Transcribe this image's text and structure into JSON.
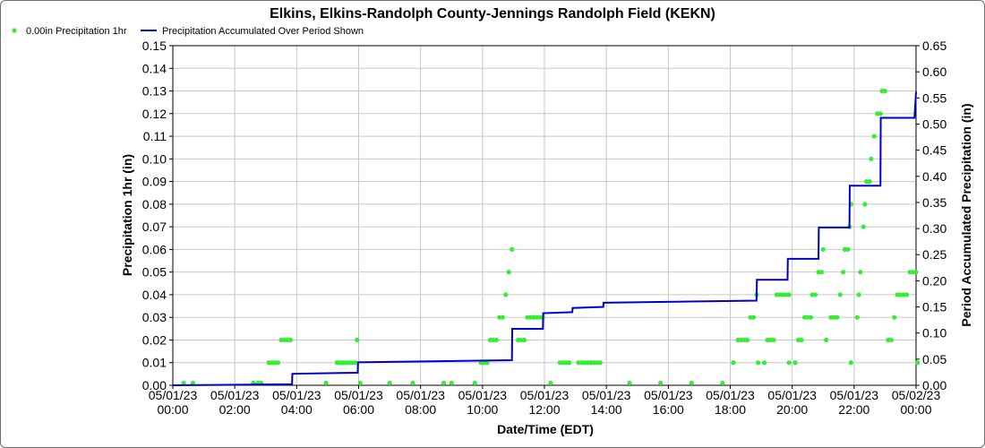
{
  "chart_data": {
    "type": "scatter+line",
    "title": "Elkins, Elkins-Randolph County-Jennings Randolph Field (KEKN)",
    "xlabel": "Date/Time (EDT)",
    "ylabel_left": "Precipitation 1hr (in)",
    "ylabel_right": "Period Accumulated Precipitation (in)",
    "legend_placement": "top-left",
    "grid": true,
    "xlim": [
      0,
      24
    ],
    "ylim_left": [
      0,
      0.15
    ],
    "ylim_right": [
      0,
      0.65
    ],
    "x_ticks": [
      {
        "x": 0,
        "date": "05/01/23",
        "time": "00:00"
      },
      {
        "x": 2,
        "date": "05/01/23",
        "time": "02:00"
      },
      {
        "x": 4,
        "date": "05/01/23",
        "time": "04:00"
      },
      {
        "x": 6,
        "date": "05/01/23",
        "time": "06:00"
      },
      {
        "x": 8,
        "date": "05/01/23",
        "time": "08:00"
      },
      {
        "x": 10,
        "date": "05/01/23",
        "time": "10:00"
      },
      {
        "x": 12,
        "date": "05/01/23",
        "time": "12:00"
      },
      {
        "x": 14,
        "date": "05/01/23",
        "time": "14:00"
      },
      {
        "x": 16,
        "date": "05/01/23",
        "time": "16:00"
      },
      {
        "x": 18,
        "date": "05/01/23",
        "time": "18:00"
      },
      {
        "x": 20,
        "date": "05/01/23",
        "time": "20:00"
      },
      {
        "x": 22,
        "date": "05/01/23",
        "time": "22:00"
      },
      {
        "x": 24,
        "date": "05/02/23",
        "time": "00:00"
      }
    ],
    "y_ticks_left": [
      "0.00",
      "0.01",
      "0.02",
      "0.03",
      "0.04",
      "0.05",
      "0.06",
      "0.07",
      "0.08",
      "0.09",
      "0.10",
      "0.11",
      "0.12",
      "0.13",
      "0.14",
      "0.15"
    ],
    "y_ticks_right": [
      "0.00",
      "0.05",
      "0.10",
      "0.15",
      "0.20",
      "0.25",
      "0.30",
      "0.35",
      "0.40",
      "0.45",
      "0.50",
      "0.55",
      "0.60",
      "0.65"
    ],
    "series": [
      {
        "name": "0.00in Precipitation 1hr",
        "type": "scatter",
        "axis": "left",
        "color": "#33ee33",
        "points": [
          [
            0.35,
            0.001
          ],
          [
            0.65,
            0.001
          ],
          [
            2.6,
            0.001
          ],
          [
            2.75,
            0.001
          ],
          [
            2.85,
            0.001
          ],
          [
            3.1,
            0.01
          ],
          [
            3.2,
            0.01
          ],
          [
            3.3,
            0.01
          ],
          [
            3.4,
            0.01
          ],
          [
            3.5,
            0.02
          ],
          [
            3.6,
            0.02
          ],
          [
            3.7,
            0.02
          ],
          [
            3.8,
            0.02
          ],
          [
            4.95,
            0.001
          ],
          [
            5.3,
            0.01
          ],
          [
            5.4,
            0.01
          ],
          [
            5.5,
            0.01
          ],
          [
            5.6,
            0.01
          ],
          [
            5.7,
            0.01
          ],
          [
            5.8,
            0.01
          ],
          [
            5.9,
            0.01
          ],
          [
            5.95,
            0.02
          ],
          [
            6.05,
            0.001
          ],
          [
            7.0,
            0.001
          ],
          [
            7.75,
            0.001
          ],
          [
            8.75,
            0.001
          ],
          [
            9.0,
            0.001
          ],
          [
            9.75,
            0.001
          ],
          [
            9.95,
            0.01
          ],
          [
            10.05,
            0.01
          ],
          [
            10.15,
            0.01
          ],
          [
            10.25,
            0.02
          ],
          [
            10.35,
            0.02
          ],
          [
            10.45,
            0.02
          ],
          [
            10.55,
            0.03
          ],
          [
            10.65,
            0.03
          ],
          [
            10.75,
            0.04
          ],
          [
            10.85,
            0.05
          ],
          [
            10.95,
            0.06
          ],
          [
            11.15,
            0.02
          ],
          [
            11.25,
            0.02
          ],
          [
            11.35,
            0.02
          ],
          [
            11.45,
            0.03
          ],
          [
            11.55,
            0.03
          ],
          [
            11.65,
            0.03
          ],
          [
            11.75,
            0.03
          ],
          [
            11.85,
            0.03
          ],
          [
            11.95,
            0.03
          ],
          [
            12.2,
            0.001
          ],
          [
            12.5,
            0.01
          ],
          [
            12.6,
            0.01
          ],
          [
            12.7,
            0.01
          ],
          [
            12.8,
            0.01
          ],
          [
            13.1,
            0.01
          ],
          [
            13.2,
            0.01
          ],
          [
            13.3,
            0.01
          ],
          [
            13.4,
            0.01
          ],
          [
            13.5,
            0.01
          ],
          [
            13.6,
            0.01
          ],
          [
            13.7,
            0.01
          ],
          [
            13.8,
            0.01
          ],
          [
            14.75,
            0.001
          ],
          [
            15.75,
            0.001
          ],
          [
            16.75,
            0.001
          ],
          [
            17.75,
            0.001
          ],
          [
            18.1,
            0.01
          ],
          [
            18.25,
            0.02
          ],
          [
            18.35,
            0.02
          ],
          [
            18.45,
            0.02
          ],
          [
            18.55,
            0.02
          ],
          [
            18.65,
            0.03
          ],
          [
            18.75,
            0.03
          ],
          [
            18.85,
            0.04
          ],
          [
            18.9,
            0.01
          ],
          [
            19.1,
            0.01
          ],
          [
            19.2,
            0.02
          ],
          [
            19.3,
            0.02
          ],
          [
            19.4,
            0.02
          ],
          [
            19.5,
            0.04
          ],
          [
            19.6,
            0.04
          ],
          [
            19.7,
            0.04
          ],
          [
            19.8,
            0.04
          ],
          [
            19.9,
            0.04
          ],
          [
            19.9,
            0.01
          ],
          [
            20.1,
            0.01
          ],
          [
            20.2,
            0.02
          ],
          [
            20.3,
            0.02
          ],
          [
            20.4,
            0.03
          ],
          [
            20.5,
            0.03
          ],
          [
            20.6,
            0.03
          ],
          [
            20.65,
            0.04
          ],
          [
            20.75,
            0.04
          ],
          [
            20.85,
            0.05
          ],
          [
            20.95,
            0.05
          ],
          [
            21.0,
            0.06
          ],
          [
            21.1,
            0.02
          ],
          [
            21.25,
            0.03
          ],
          [
            21.35,
            0.03
          ],
          [
            21.45,
            0.03
          ],
          [
            21.55,
            0.04
          ],
          [
            21.65,
            0.05
          ],
          [
            21.7,
            0.06
          ],
          [
            21.8,
            0.06
          ],
          [
            21.85,
            0.07
          ],
          [
            21.9,
            0.08
          ],
          [
            21.9,
            0.01
          ],
          [
            22.1,
            0.03
          ],
          [
            22.15,
            0.04
          ],
          [
            22.2,
            0.05
          ],
          [
            22.3,
            0.07
          ],
          [
            22.35,
            0.08
          ],
          [
            22.4,
            0.09
          ],
          [
            22.5,
            0.09
          ],
          [
            22.55,
            0.1
          ],
          [
            22.65,
            0.11
          ],
          [
            22.75,
            0.12
          ],
          [
            22.85,
            0.12
          ],
          [
            22.9,
            0.13
          ],
          [
            23.0,
            0.13
          ],
          [
            23.1,
            0.02
          ],
          [
            23.2,
            0.02
          ],
          [
            23.3,
            0.03
          ],
          [
            23.4,
            0.04
          ],
          [
            23.5,
            0.04
          ],
          [
            23.6,
            0.04
          ],
          [
            23.7,
            0.04
          ],
          [
            23.8,
            0.05
          ],
          [
            23.9,
            0.05
          ],
          [
            24.0,
            0.05
          ],
          [
            24.05,
            0.01
          ]
        ]
      },
      {
        "name": "Precipitation Accumulated Over Period Shown",
        "type": "step-line",
        "axis": "right",
        "color": "#0000cc",
        "points": [
          [
            0,
            0
          ],
          [
            3.85,
            0.002
          ],
          [
            3.86,
            0.022
          ],
          [
            5.97,
            0.024
          ],
          [
            5.98,
            0.044
          ],
          [
            10.95,
            0.048
          ],
          [
            10.96,
            0.108
          ],
          [
            11.95,
            0.108
          ],
          [
            11.96,
            0.138
          ],
          [
            12.9,
            0.14
          ],
          [
            12.91,
            0.148
          ],
          [
            13.9,
            0.15
          ],
          [
            13.91,
            0.158
          ],
          [
            18.85,
            0.162
          ],
          [
            18.86,
            0.202
          ],
          [
            19.85,
            0.202
          ],
          [
            19.86,
            0.242
          ],
          [
            20.85,
            0.242
          ],
          [
            20.86,
            0.302
          ],
          [
            21.85,
            0.302
          ],
          [
            21.86,
            0.382
          ],
          [
            22.85,
            0.382
          ],
          [
            22.86,
            0.512
          ],
          [
            23.95,
            0.512
          ],
          [
            24.0,
            0.562
          ]
        ]
      }
    ]
  }
}
